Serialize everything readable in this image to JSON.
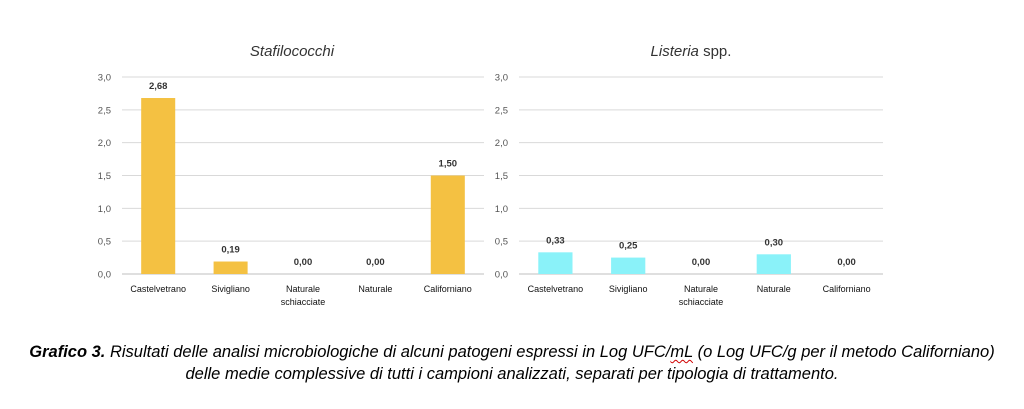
{
  "chart_data": [
    {
      "type": "bar",
      "title_italic": "Stafilococchi",
      "title_rest": "",
      "categories": [
        "Castelvetrano",
        "Sivigliano",
        "Naturale schiacciate",
        "Naturale",
        "Californiano"
      ],
      "values": [
        2.68,
        0.19,
        0.0,
        0.0,
        1.5
      ],
      "value_labels": [
        "2,68",
        "0,19",
        "0,00",
        "0,00",
        "1,50"
      ],
      "yticks": [
        "0,0",
        "0,5",
        "1,0",
        "1,5",
        "2,0",
        "2,5",
        "3,0"
      ],
      "ylim": [
        0,
        3.0
      ],
      "bar_color": "#F4C142",
      "grid": true,
      "legend": "none"
    },
    {
      "type": "bar",
      "title_italic": "Listeria",
      "title_rest": " spp.",
      "categories": [
        "Castelvetrano",
        "Sivigliano",
        "Naturale schiacciate",
        "Naturale",
        "Californiano"
      ],
      "values": [
        0.33,
        0.25,
        0.0,
        0.3,
        0.0
      ],
      "value_labels": [
        "0,33",
        "0,25",
        "0,00",
        "0,30",
        "0,00"
      ],
      "yticks": [
        "0,0",
        "0,5",
        "1,0",
        "1,5",
        "2,0",
        "2,5",
        "3,0"
      ],
      "ylim": [
        0,
        3.0
      ],
      "bar_color": "#8AF2F9",
      "grid": true,
      "legend": "none"
    }
  ],
  "caption": {
    "label": "Grafico 3.",
    "text_before": " Risultati delle analisi microbiologiche di alcuni patogeni espressi in Log UFC/",
    "squiggle": "mL",
    "text_after": " (o Log UFC/g per il metodo Californiano) delle medie complessive di tutti i campioni analizzati, separati per tipologia di trattamento."
  }
}
